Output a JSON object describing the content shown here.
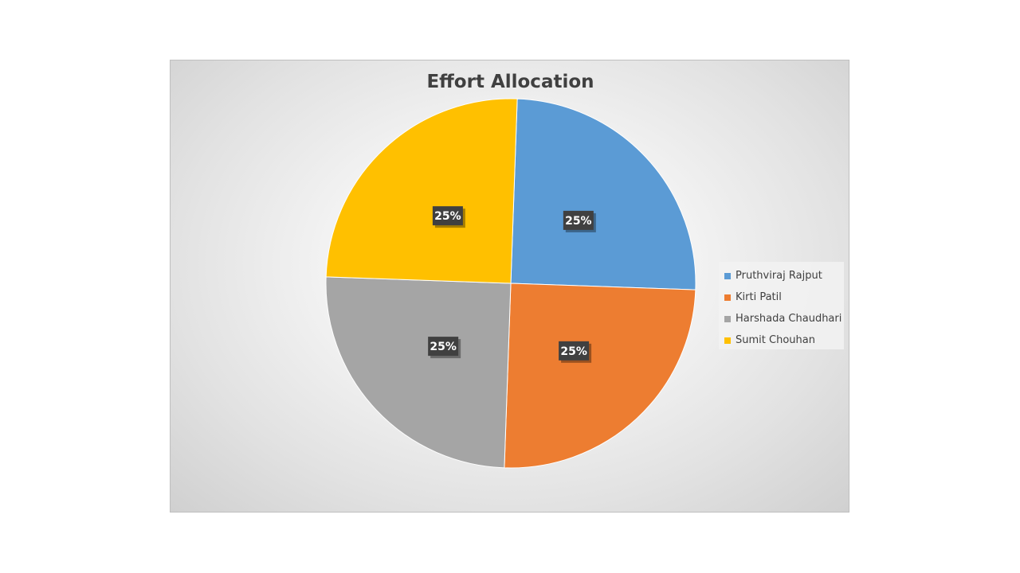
{
  "chart_data": {
    "type": "pie",
    "title": "Effort Allocation",
    "categories": [
      "Pruthviraj Rajput",
      "Kirti Patil",
      "Harshada Chaudhari",
      "Sumit Chouhan"
    ],
    "values": [
      25,
      25,
      25,
      25
    ],
    "data_labels": [
      "25%",
      "25%",
      "25%",
      "25%"
    ],
    "colors": [
      "#5b9bd5",
      "#ed7d31",
      "#a5a5a5",
      "#ffc000"
    ],
    "legend_position": "right"
  }
}
